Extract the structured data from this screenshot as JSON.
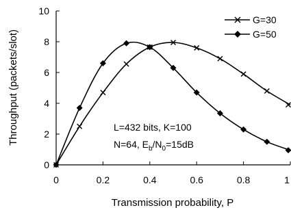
{
  "chart_data": {
    "type": "line",
    "xlabel": "Transmission probability, P",
    "ylabel": "Throughput (packets/slot)",
    "xlim": [
      0,
      1
    ],
    "ylim": [
      0,
      10
    ],
    "x_ticks": [
      "0",
      "0.2",
      "0.4",
      "0.6",
      "0.8",
      "1"
    ],
    "y_ticks": [
      "0",
      "2",
      "4",
      "6",
      "8",
      "10"
    ],
    "grid": false,
    "legend_position": "top-right",
    "x": [
      0,
      0.1,
      0.2,
      0.3,
      0.4,
      0.5,
      0.6,
      0.7,
      0.8,
      0.9,
      1.0
    ],
    "series": [
      {
        "name": "G=30",
        "marker": "x",
        "values": [
          0,
          2.5,
          4.7,
          6.55,
          7.65,
          7.95,
          7.6,
          6.9,
          5.9,
          4.8,
          3.9
        ]
      },
      {
        "name": "G=50",
        "marker": "diamond",
        "values": [
          0,
          3.7,
          6.6,
          7.9,
          7.65,
          6.3,
          4.7,
          3.35,
          2.3,
          1.5,
          0.95
        ]
      }
    ],
    "annotations": {
      "line1": "L=432 bits, K=100",
      "line2_prefix": "N=64, E",
      "line2_sub1": "b",
      "line2_mid": "/N",
      "line2_sub2": "0",
      "line2_suffix": "=15dB"
    }
  }
}
